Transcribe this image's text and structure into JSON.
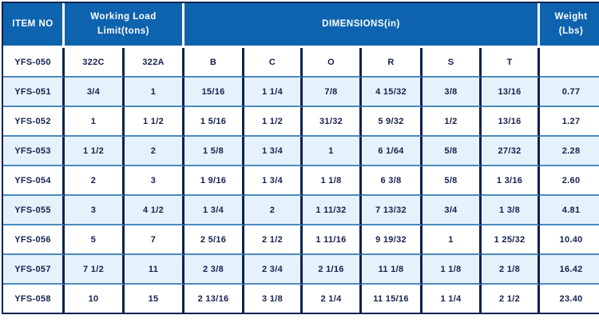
{
  "colors": {
    "header_bg": "#0e63ae",
    "header_text": "#ffffff",
    "row_shaded_bg": "#e6f2fb",
    "row_plain_bg": "#ffffff",
    "border_dark": "#0c2250",
    "border_light": "#4a8abe",
    "cell_text": "#16214f"
  },
  "header": {
    "item_no": "ITEM NO",
    "working_load_line1": "Working Load",
    "working_load_line2": "Limit(tons)",
    "dimensions": "DIMENSIONS(in)",
    "weight_line1": "Weight",
    "weight_line2": "(Lbs)"
  },
  "chart_data": {
    "type": "table",
    "header_groups": [
      {
        "label": "ITEM NO",
        "colspan": 1
      },
      {
        "label": "Working Load Limit(tons)",
        "colspan": 2
      },
      {
        "label": "DIMENSIONS(in)",
        "colspan": 6
      },
      {
        "label": "Weight (Lbs)",
        "colspan": 1
      }
    ],
    "sub_header": [
      "YFS-050",
      "322C",
      "322A",
      "B",
      "C",
      "O",
      "R",
      "S",
      "T",
      ""
    ],
    "rows": [
      [
        "YFS-051",
        "3/4",
        "1",
        "15/16",
        "1 1/4",
        "7/8",
        "4 15/32",
        "3/8",
        "13/16",
        "0.77"
      ],
      [
        "YFS-052",
        "1",
        "1 1/2",
        "1 5/16",
        "1 1/2",
        "31/32",
        "5 9/32",
        "1/2",
        "13/16",
        "1.27"
      ],
      [
        "YFS-053",
        "1 1/2",
        "2",
        "1 5/8",
        "1 3/4",
        "1",
        "6 1/64",
        "5/8",
        "27/32",
        "2.28"
      ],
      [
        "YFS-054",
        "2",
        "3",
        "1 9/16",
        "1 3/4",
        "1 1/8",
        "6 3/8",
        "5/8",
        "1 3/16",
        "2.60"
      ],
      [
        "YFS-055",
        "3",
        "4 1/2",
        "1 3/4",
        "2",
        "1 11/32",
        "7 13/32",
        "3/4",
        "1 3/8",
        "4.81"
      ],
      [
        "YFS-056",
        "5",
        "7",
        "2 5/16",
        "2 1/2",
        "1 11/16",
        "9 19/32",
        "1",
        "1 25/32",
        "10.40"
      ],
      [
        "YFS-057",
        "7 1/2",
        "11",
        "2 3/8",
        "2 3/4",
        "2 1/16",
        "11 1/8",
        "1 1/8",
        "2 1/8",
        "16.42"
      ],
      [
        "YFS-058",
        "10",
        "15",
        "2 13/16",
        "3 1/8",
        "2 1/4",
        "11 15/16",
        "1 1/4",
        "2 1/2",
        "23.40"
      ]
    ]
  }
}
